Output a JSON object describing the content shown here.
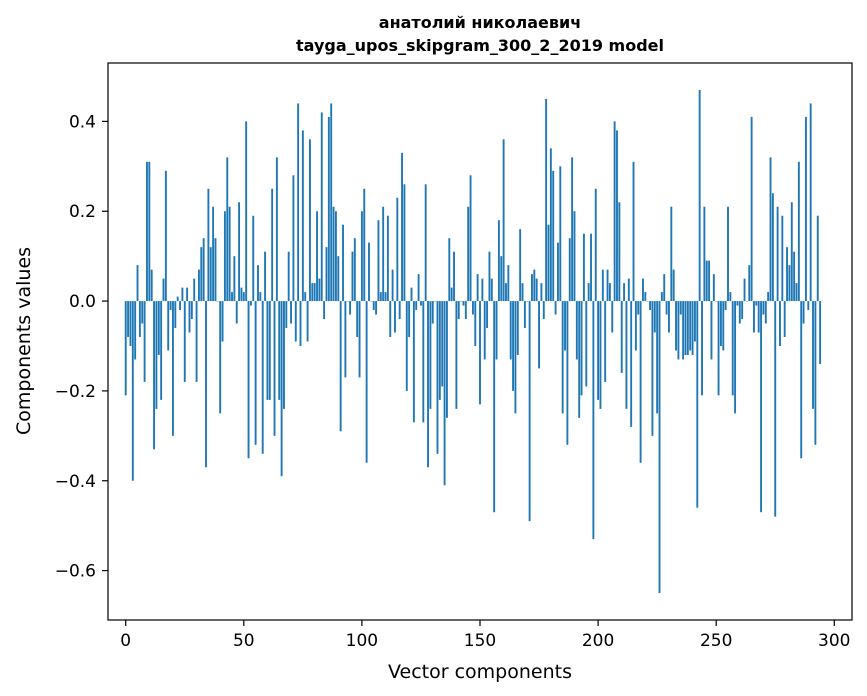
{
  "chart_data": {
    "type": "bar",
    "title": "анатолий николаевич",
    "subtitle": "tayga_upos_skipgram_300_2_2019 model",
    "xlabel": "Vector components",
    "ylabel": "Components values",
    "xlim": [
      -7.5,
      307.5
    ],
    "ylim": [
      -0.71,
      0.53
    ],
    "xticks": [
      0,
      50,
      100,
      150,
      200,
      250,
      300
    ],
    "xtick_labels": [
      "0",
      "50",
      "100",
      "150",
      "200",
      "250",
      "300"
    ],
    "yticks": [
      -0.6,
      -0.4,
      -0.2,
      0.0,
      0.2,
      0.4
    ],
    "ytick_labels": [
      "−0.6",
      "−0.4",
      "−0.2",
      "0.0",
      "0.2",
      "0.4"
    ],
    "bar_color": "#1f77b4",
    "grid": false,
    "values": [
      -0.21,
      -0.08,
      -0.1,
      -0.4,
      -0.13,
      0.08,
      -0.08,
      -0.05,
      -0.18,
      0.31,
      0.31,
      0.07,
      -0.33,
      -0.24,
      -0.12,
      -0.22,
      0.05,
      0.29,
      -0.11,
      -0.02,
      -0.3,
      -0.06,
      0.01,
      -0.02,
      0.03,
      -0.18,
      0.03,
      -0.07,
      -0.04,
      0.05,
      -0.18,
      0.07,
      0.12,
      0.14,
      -0.37,
      0.25,
      0.12,
      0.21,
      0.14,
      0.0,
      -0.25,
      -0.09,
      0.2,
      0.32,
      0.21,
      0.02,
      0.1,
      -0.05,
      0.22,
      0.03,
      0.02,
      0.4,
      -0.35,
      -0.01,
      0.19,
      -0.32,
      0.08,
      0.02,
      -0.34,
      0.11,
      -0.22,
      -0.22,
      0.25,
      -0.3,
      0.32,
      -0.22,
      -0.39,
      -0.24,
      -0.06,
      0.11,
      -0.05,
      0.28,
      -0.09,
      0.44,
      -0.1,
      0.38,
      0.02,
      -0.09,
      0.36,
      0.04,
      0.04,
      0.2,
      0.05,
      0.42,
      -0.04,
      0.12,
      0.41,
      0.44,
      0.21,
      0.2,
      0.1,
      -0.29,
      0.17,
      -0.17,
      0.0,
      -0.03,
      0.11,
      0.14,
      -0.08,
      -0.17,
      0.2,
      0.25,
      -0.36,
      0.13,
      0.0,
      -0.02,
      -0.03,
      0.18,
      0.02,
      0.21,
      0.02,
      0.19,
      -0.08,
      0.07,
      -0.07,
      0.23,
      -0.04,
      0.33,
      0.26,
      -0.2,
      -0.08,
      0.03,
      -0.27,
      -0.02,
      0.06,
      -0.01,
      -0.27,
      0.26,
      -0.37,
      -0.24,
      -0.05,
      0.0,
      -0.34,
      -0.22,
      -0.19,
      -0.41,
      -0.26,
      0.14,
      0.03,
      0.11,
      -0.24,
      -0.04,
      0.0,
      -0.01,
      -0.04,
      0.21,
      0.28,
      -0.03,
      -0.1,
      0.06,
      -0.23,
      0.05,
      -0.13,
      -0.06,
      0.11,
      0.05,
      -0.47,
      -0.13,
      0.18,
      0.1,
      0.36,
      0.04,
      0.08,
      -0.13,
      -0.2,
      -0.25,
      -0.12,
      0.16,
      0.04,
      -0.06,
      0.0,
      -0.49,
      0.06,
      0.07,
      0.05,
      -0.15,
      0.04,
      -0.04,
      0.45,
      0.17,
      0.34,
      0.29,
      -0.03,
      0.13,
      0.3,
      -0.25,
      -0.11,
      -0.32,
      0.14,
      0.32,
      0.2,
      -0.13,
      -0.26,
      -0.21,
      0.15,
      -0.19,
      0.04,
      0.15,
      -0.53,
      0.25,
      -0.22,
      -0.24,
      0.07,
      -0.18,
      0.07,
      0.04,
      -0.07,
      0.4,
      0.38,
      0.22,
      -0.16,
      0.04,
      -0.24,
      0.05,
      -0.28,
      0.31,
      -0.11,
      -0.03,
      -0.36,
      0.05,
      0.02,
      0.0,
      -0.02,
      -0.3,
      -0.07,
      -0.25,
      -0.65,
      0.02,
      0.06,
      -0.03,
      -0.07,
      0.21,
      0.07,
      -0.11,
      -0.13,
      -0.03,
      -0.13,
      -0.12,
      -0.12,
      -0.11,
      -0.12,
      -0.09,
      -0.46,
      0.47,
      -0.21,
      0.21,
      0.09,
      0.09,
      -0.13,
      0.06,
      0.0,
      -0.21,
      -0.1,
      -0.11,
      -0.02,
      0.21,
      0.02,
      -0.21,
      -0.25,
      -0.01,
      -0.05,
      -0.04,
      0.05,
      0.0,
      0.08,
      0.41,
      -0.07,
      -0.01,
      -0.07,
      -0.47,
      -0.03,
      -0.05,
      0.02,
      0.32,
      0.24,
      -0.48,
      0.21,
      -0.1,
      0.19,
      -0.08,
      0.12,
      0.08,
      0.22,
      0.11,
      0.04,
      0.31,
      -0.35,
      -0.05,
      0.41,
      -0.02,
      0.44,
      -0.24,
      -0.32,
      0.19,
      -0.14
    ]
  }
}
